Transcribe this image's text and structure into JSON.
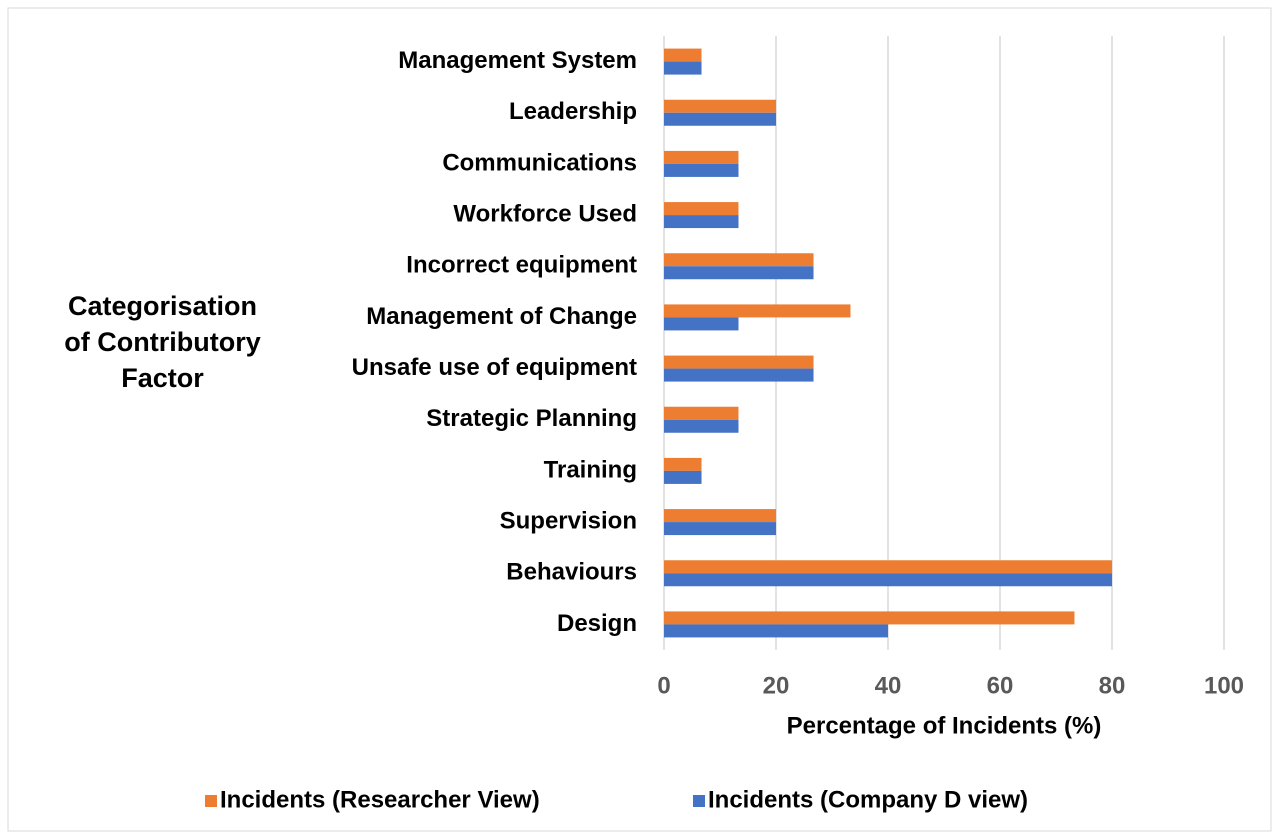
{
  "chart_data": {
    "type": "bar",
    "orientation": "horizontal",
    "x_label": "Percentage of Incidents (%)",
    "y_label": "Categorisation of Contributory Factor",
    "categories": [
      "Design",
      "Behaviours",
      "Supervision",
      "Training",
      "Strategic Planning",
      "Unsafe use of equipment",
      "Management of Change",
      "Incorrect equipment",
      "Workforce Used",
      "Communications",
      "Leadership",
      "Management System"
    ],
    "series": [
      {
        "name": "Incidents (Researcher View)",
        "color": "#ed7d31",
        "values": [
          73.3,
          80,
          20,
          6.7,
          13.3,
          26.7,
          33.3,
          26.7,
          13.3,
          13.3,
          20,
          6.7
        ]
      },
      {
        "name": "Incidents (Company D view)",
        "color": "#4472c4",
        "values": [
          40,
          80,
          20,
          6.7,
          13.3,
          26.7,
          13.3,
          26.7,
          13.3,
          13.3,
          20,
          6.7
        ]
      }
    ],
    "xlim": [
      0,
      100
    ],
    "xticks": [
      0,
      20,
      40,
      60,
      80,
      100
    ],
    "grid": true,
    "legend": "bottom"
  }
}
